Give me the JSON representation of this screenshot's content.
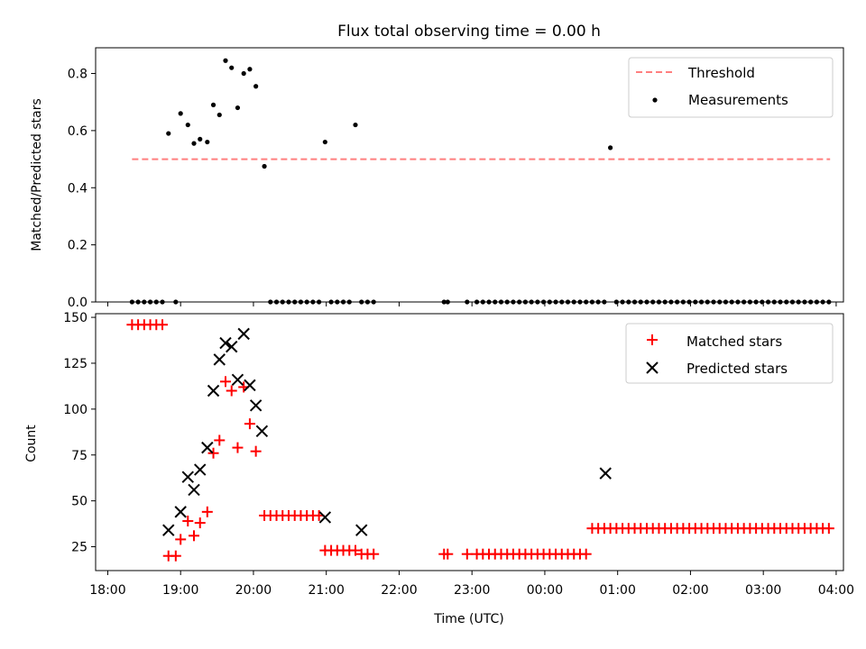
{
  "chart_data": [
    {
      "type": "scatter",
      "title": "Flux total observing time = 0.00 h",
      "xlabel": "",
      "ylabel": "Matched/Predicted stars",
      "xlim": [
        "18:00",
        "04:00"
      ],
      "ylim": [
        0,
        0.89
      ],
      "yticks": [
        "0.0",
        "0.2",
        "0.4",
        "0.6",
        "0.8"
      ],
      "legend_position": "top-right",
      "series": [
        {
          "name": "Threshold",
          "style": "dashed-line",
          "color": "#ff7f7f",
          "x": [
            "18:20",
            "03:55"
          ],
          "values": [
            0.5,
            0.5
          ]
        },
        {
          "name": "Measurements",
          "style": "dot",
          "color": "#000000",
          "x": [
            "18:20",
            "18:25",
            "18:30",
            "18:35",
            "18:40",
            "18:45",
            "18:50",
            "18:56",
            "19:00",
            "19:06",
            "19:11",
            "19:16",
            "19:22",
            "19:27",
            "19:32",
            "19:37",
            "19:42",
            "19:47",
            "19:52",
            "19:57",
            "20:02",
            "20:09",
            "20:14",
            "20:19",
            "20:24",
            "20:29",
            "20:34",
            "20:39",
            "20:44",
            "20:49",
            "20:54",
            "20:59",
            "21:04",
            "21:09",
            "21:14",
            "21:19",
            "21:24",
            "21:29",
            "21:34",
            "21:39",
            "22:37",
            "22:40",
            "22:56",
            "23:04",
            "23:09",
            "23:14",
            "23:19",
            "23:24",
            "23:29",
            "23:34",
            "23:39",
            "23:44",
            "23:49",
            "23:54",
            "23:59",
            "00:04",
            "00:09",
            "00:14",
            "00:19",
            "00:24",
            "00:29",
            "00:34",
            "00:39",
            "00:44",
            "00:49",
            "00:54",
            "00:59",
            "01:04",
            "01:09",
            "01:14",
            "01:19",
            "01:24",
            "01:29",
            "01:34",
            "01:39",
            "01:44",
            "01:49",
            "01:54",
            "01:59",
            "02:04",
            "02:09",
            "02:14",
            "02:19",
            "02:24",
            "02:29",
            "02:34",
            "02:39",
            "02:44",
            "02:49",
            "02:54",
            "02:59",
            "03:04",
            "03:09",
            "03:14",
            "03:19",
            "03:24",
            "03:29",
            "03:34",
            "03:39",
            "03:44",
            "03:49",
            "03:54"
          ],
          "values": [
            0,
            0,
            0,
            0,
            0,
            0,
            0.59,
            0,
            0.66,
            0.62,
            0.555,
            0.57,
            0.56,
            0.69,
            0.655,
            0.845,
            0.82,
            0.68,
            0.8,
            0.815,
            0.755,
            0.475,
            0,
            0,
            0,
            0,
            0,
            0,
            0,
            0,
            0,
            0.56,
            0,
            0,
            0,
            0,
            0.62,
            0,
            0,
            0,
            0,
            0,
            0,
            0,
            0,
            0,
            0,
            0,
            0,
            0,
            0,
            0,
            0,
            0,
            0,
            0,
            0,
            0,
            0,
            0,
            0,
            0,
            0,
            0,
            0,
            0.54,
            0,
            0,
            0,
            0,
            0,
            0,
            0,
            0,
            0,
            0,
            0,
            0,
            0,
            0,
            0,
            0,
            0,
            0,
            0,
            0,
            0,
            0,
            0,
            0,
            0,
            0,
            0,
            0,
            0,
            0,
            0,
            0,
            0,
            0,
            0,
            0
          ]
        }
      ]
    },
    {
      "type": "scatter",
      "title": "",
      "xlabel": "Time (UTC)",
      "ylabel": "Count",
      "xlim": [
        "18:00",
        "04:00"
      ],
      "ylim": [
        12,
        152
      ],
      "xticks": [
        "18:00",
        "19:00",
        "20:00",
        "21:00",
        "22:00",
        "23:00",
        "00:00",
        "01:00",
        "02:00",
        "03:00",
        "04:00"
      ],
      "yticks": [
        "25",
        "50",
        "75",
        "100",
        "125",
        "150"
      ],
      "legend_position": "top-right",
      "series": [
        {
          "name": "Matched stars",
          "marker": "+",
          "color": "#ff0000",
          "x": [
            "18:20",
            "18:25",
            "18:30",
            "18:35",
            "18:40",
            "18:45",
            "18:50",
            "18:56",
            "19:00",
            "19:06",
            "19:11",
            "19:16",
            "19:22",
            "19:27",
            "19:32",
            "19:37",
            "19:42",
            "19:47",
            "19:52",
            "19:57",
            "20:02",
            "20:09",
            "20:14",
            "20:19",
            "20:24",
            "20:29",
            "20:34",
            "20:39",
            "20:44",
            "20:49",
            "20:54",
            "20:59",
            "21:04",
            "21:09",
            "21:14",
            "21:19",
            "21:24",
            "21:29",
            "21:34",
            "21:39",
            "22:37",
            "22:40",
            "22:56",
            "23:04",
            "23:09",
            "23:14",
            "23:19",
            "23:24",
            "23:29",
            "23:34",
            "23:39",
            "23:44",
            "23:49",
            "23:54",
            "23:59",
            "00:04",
            "00:09",
            "00:14",
            "00:19",
            "00:24",
            "00:29",
            "00:34",
            "00:39",
            "00:44",
            "00:49",
            "00:54",
            "00:59",
            "01:04",
            "01:09",
            "01:14",
            "01:19",
            "01:24",
            "01:29",
            "01:34",
            "01:39",
            "01:44",
            "01:49",
            "01:54",
            "01:59",
            "02:04",
            "02:09",
            "02:14",
            "02:19",
            "02:24",
            "02:29",
            "02:34",
            "02:39",
            "02:44",
            "02:49",
            "02:54",
            "02:59",
            "03:04",
            "03:09",
            "03:14",
            "03:19",
            "03:24",
            "03:29",
            "03:34",
            "03:39",
            "03:44",
            "03:49",
            "03:54"
          ],
          "values": [
            146,
            146,
            146,
            146,
            146,
            146,
            20,
            20,
            29,
            39,
            31,
            38,
            44,
            76,
            83,
            115,
            110,
            79,
            112,
            92,
            77,
            42,
            42,
            42,
            42,
            42,
            42,
            42,
            42,
            42,
            42,
            23,
            23,
            23,
            23,
            23,
            23,
            21,
            21,
            21,
            21,
            21,
            21,
            21,
            21,
            21,
            21,
            21,
            21,
            21,
            21,
            21,
            21,
            21,
            21,
            21,
            21,
            21,
            21,
            21,
            21,
            21,
            35,
            35,
            35,
            35,
            35,
            35,
            35,
            35,
            35,
            35,
            35,
            35,
            35,
            35,
            35,
            35,
            35,
            35,
            35,
            35,
            35,
            35,
            35,
            35,
            35,
            35,
            35,
            35,
            35,
            35,
            35,
            35,
            35,
            35,
            35,
            35,
            35,
            35,
            35,
            35
          ]
        },
        {
          "name": "Predicted stars",
          "marker": "x",
          "color": "#000000",
          "x": [
            "18:50",
            "19:00",
            "19:06",
            "19:11",
            "19:16",
            "19:22",
            "19:27",
            "19:32",
            "19:37",
            "19:42",
            "19:47",
            "19:52",
            "19:57",
            "20:02",
            "20:07",
            "20:59",
            "21:29",
            "00:50"
          ],
          "values": [
            34,
            44,
            63,
            56,
            67,
            79,
            110,
            127,
            136,
            134,
            116,
            141,
            113,
            102,
            88,
            41,
            34,
            65
          ]
        }
      ]
    }
  ]
}
